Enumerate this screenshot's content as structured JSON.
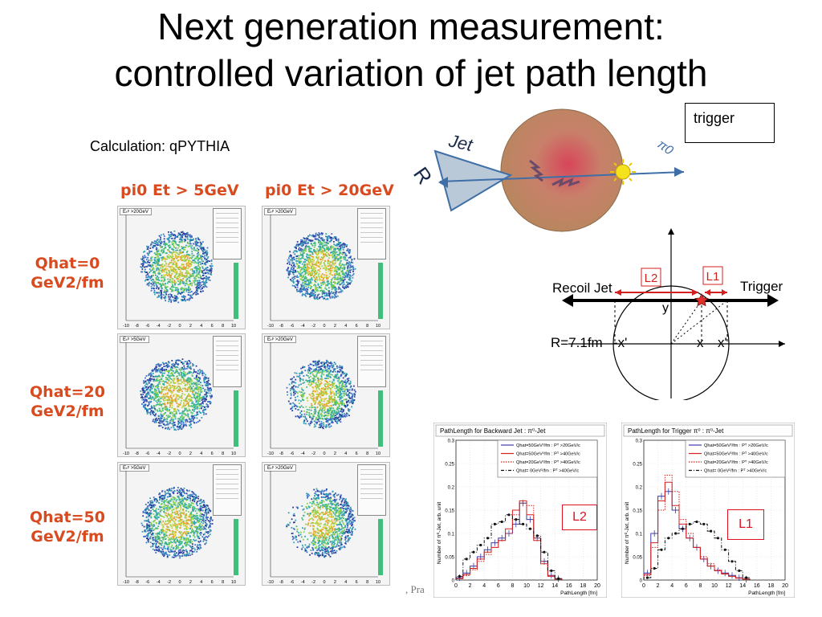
{
  "slide": {
    "title_line1": "Next generation measurement:",
    "title_line2": "controlled variation of jet path length",
    "calc_label": "Calculation: qPYTHIA",
    "trigger_box": "trigger",
    "footer_fragment": ", Pra"
  },
  "grid": {
    "col_headers": [
      "pi0 Et > 5GeV",
      "pi0 Et > 20GeV"
    ],
    "row_headers": [
      {
        "line1": "Qhat=0",
        "line2": "GeV2/fm"
      },
      {
        "line1": "Qhat=20",
        "line2": "GeV2/fm"
      },
      {
        "line1": "Qhat=50",
        "line2": "GeV2/fm"
      }
    ],
    "panel_titles": [
      "Eₜᵖ >20GeV",
      "Eₜᵖ >20GeV",
      "Eₜᵖ >5GeV",
      "Eₜᵖ >20GeV",
      "Eₜᵖ >5GeV",
      "Eₜᵖ >20GeV"
    ],
    "x_ticks": [
      "-10",
      "-8",
      "-6",
      "-4",
      "-2",
      "0",
      "2",
      "4",
      "6",
      "8",
      "10"
    ]
  },
  "jet_diagram": {
    "jet_label": "Jet",
    "r_label": "R",
    "pi0_label": "π0"
  },
  "geometry": {
    "recoil_label": "Recoil Jet",
    "trigger_label": "Trigger",
    "l2_label": "L2",
    "l1_label": "L1",
    "y_label": "y",
    "radius_label": "R=7.1fm",
    "neg_x_label": "-x'",
    "x_label": "x",
    "x_prime_label": "x'"
  },
  "charts": {
    "left": {
      "title": "PathLength for Backward Jet : π⁰-Jet",
      "ylabel": "Number of π⁰-Jet, arb. unit",
      "xlabel": "PathLength [fm]",
      "tag": "L2",
      "legend": [
        "Qhat=50GeV²/fm : Pᵀ >20GeV/c",
        "Qhat=50GeV²/fm : Pᵀ >40GeV/c",
        "Qhat=20GeV²/fm : Pᵀ >40GeV/c",
        "Qhat= 0GeV²/fm : Pᵀ >40GeV/c"
      ]
    },
    "right": {
      "title": "PathLength for Trigger π⁰ : π⁰-Jet",
      "ylabel": "Number of π⁰-Jet, arb. unit",
      "xlabel": "PathLength [fm]",
      "tag": "L1",
      "legend": [
        "Qhat=50GeV²/fm : Pᵀ >20GeV/c",
        "Qhat=50GeV²/fm : Pᵀ >40GeV/c",
        "Qhat=20GeV²/fm : Pᵀ >40GeV/c",
        "Qhat= 0GeV²/fm : Pᵀ >40GeV/c"
      ]
    }
  },
  "colors": {
    "blue": "#3a3aa8",
    "red": "#d2201e",
    "black": "#111111",
    "orange": "#d94a1f"
  },
  "chart_data": [
    {
      "type": "line",
      "title": "PathLength for Backward Jet : π⁰-Jet",
      "xlabel": "PathLength [fm]",
      "ylabel": "Number of π⁰-Jet, arb. unit",
      "xlim": [
        0,
        20
      ],
      "ylim": [
        0,
        0.3
      ],
      "x_ticks": [
        0,
        2,
        4,
        6,
        8,
        10,
        12,
        14,
        16,
        18,
        20
      ],
      "y_ticks": [
        0,
        0.05,
        0.1,
        0.15,
        0.2,
        0.25,
        0.3
      ],
      "x": [
        0.5,
        1.5,
        2.5,
        3.5,
        4.5,
        5.5,
        6.5,
        7.5,
        8.5,
        9.5,
        10.5,
        11.5,
        12.5,
        13.5,
        14.5
      ],
      "series": [
        {
          "name": "Qhat=50GeV²/fm : Pᵀ >20GeV/c",
          "style": "blue-solid",
          "values": [
            0.005,
            0.015,
            0.03,
            0.05,
            0.065,
            0.08,
            0.09,
            0.1,
            0.12,
            0.165,
            0.13,
            0.09,
            0.04,
            0.01,
            0.003
          ]
        },
        {
          "name": "Qhat=50GeV²/fm : Pᵀ >40GeV/c",
          "style": "red-solid",
          "values": [
            0.003,
            0.012,
            0.025,
            0.045,
            0.06,
            0.07,
            0.085,
            0.11,
            0.15,
            0.17,
            0.14,
            0.085,
            0.035,
            0.008,
            0.002
          ]
        },
        {
          "name": "Qhat=20GeV²/fm : Pᵀ >40GeV/c",
          "style": "red-dotted",
          "values": [
            0.003,
            0.01,
            0.022,
            0.04,
            0.055,
            0.07,
            0.085,
            0.1,
            0.14,
            0.165,
            0.16,
            0.09,
            0.04,
            0.01,
            0.002
          ]
        },
        {
          "name": "Qhat= 0GeV²/fm : Pᵀ >40GeV/c",
          "style": "black-dashdot",
          "values": [
            0.008,
            0.045,
            0.06,
            0.075,
            0.09,
            0.12,
            0.125,
            0.14,
            0.13,
            0.12,
            0.11,
            0.095,
            0.06,
            0.02,
            0.003
          ]
        }
      ]
    },
    {
      "type": "line",
      "title": "PathLength for Trigger π⁰ : π⁰-Jet",
      "xlabel": "PathLength [fm]",
      "ylabel": "Number of π⁰-Jet, arb. unit",
      "xlim": [
        0,
        20
      ],
      "ylim": [
        0,
        0.3
      ],
      "x_ticks": [
        0,
        2,
        4,
        6,
        8,
        10,
        12,
        14,
        16,
        18,
        20
      ],
      "y_ticks": [
        0,
        0.05,
        0.1,
        0.15,
        0.2,
        0.25,
        0.3
      ],
      "x": [
        0.5,
        1.5,
        2.5,
        3.5,
        4.5,
        5.5,
        6.5,
        7.5,
        8.5,
        9.5,
        10.5,
        11.5,
        12.5,
        13.5,
        14.5
      ],
      "series": [
        {
          "name": "Qhat=50GeV²/fm : Pᵀ >20GeV/c",
          "style": "blue-solid",
          "values": [
            0.015,
            0.1,
            0.18,
            0.19,
            0.15,
            0.11,
            0.09,
            0.07,
            0.045,
            0.03,
            0.02,
            0.015,
            0.01,
            0.005,
            0.002
          ]
        },
        {
          "name": "Qhat=50GeV²/fm : Pᵀ >40GeV/c",
          "style": "red-solid",
          "values": [
            0.012,
            0.08,
            0.17,
            0.21,
            0.16,
            0.12,
            0.09,
            0.07,
            0.045,
            0.03,
            0.02,
            0.013,
            0.008,
            0.004,
            0.002
          ]
        },
        {
          "name": "Qhat=20GeV²/fm : Pᵀ >40GeV/c",
          "style": "red-dotted",
          "values": [
            0.01,
            0.07,
            0.15,
            0.225,
            0.19,
            0.13,
            0.1,
            0.07,
            0.05,
            0.035,
            0.022,
            0.014,
            0.008,
            0.004,
            0.002
          ]
        },
        {
          "name": "Qhat= 0GeV²/fm : Pᵀ >40GeV/c",
          "style": "black-dashdot",
          "values": [
            0.005,
            0.025,
            0.065,
            0.09,
            0.1,
            0.11,
            0.12,
            0.125,
            0.12,
            0.105,
            0.09,
            0.065,
            0.04,
            0.02,
            0.005
          ]
        }
      ]
    }
  ]
}
